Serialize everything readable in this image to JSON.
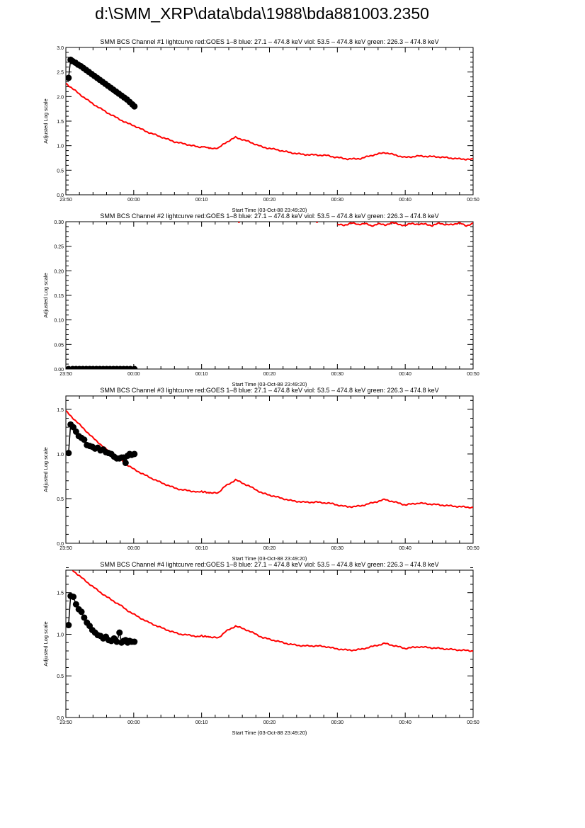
{
  "page_title": "d:\\SMM_XRP\\data\\bda\\1988\\bda881003.2350",
  "colors": {
    "goes": "#ff0000",
    "bcs": "#000000",
    "axes": "#000000"
  },
  "chart_data": [
    {
      "type": "line",
      "title": "SMM BCS Channel #1 lightcurve  red:GOES 1–8  blue: 27.1 – 474.8 keV  viol: 53.5 – 474.8 keV  green: 226.3 – 474.8 keV",
      "xlabel": "Start Time (03-Oct-88 23:49:20)",
      "ylabel": "Adjusted Log scale",
      "xlim": [
        "23:50",
        "00:50"
      ],
      "xticks": [
        "23:50",
        "00:00",
        "00:10",
        "00:20",
        "00:30",
        "00:40",
        "00:50"
      ],
      "ylim": [
        0,
        3.0
      ],
      "yticks": [
        "0.0",
        "0.5",
        "1.0",
        "1.5",
        "2.0",
        "2.5",
        "3.0"
      ],
      "ytick_values": [
        0,
        0.5,
        1.0,
        1.5,
        2.0,
        2.5,
        3.0
      ],
      "yminor": 0.1,
      "series": [
        {
          "name": "red:GOES 1–8",
          "style": "line",
          "color": "#ff0000",
          "minutes_after_2350": [
            0,
            2,
            4,
            6,
            8,
            9,
            10,
            12,
            14,
            15,
            16,
            17,
            18,
            19,
            19.5,
            20,
            20.7,
            21.5,
            22.5,
            23.5,
            25,
            27,
            29,
            31,
            33,
            35,
            37,
            38.5,
            39.5,
            40.5,
            41.5,
            42.5,
            43.5,
            45,
            47,
            50,
            52,
            55,
            58,
            60,
            61
          ],
          "values": [
            2.27,
            2.05,
            1.85,
            1.68,
            1.53,
            1.46,
            1.41,
            1.28,
            1.18,
            1.13,
            1.08,
            1.05,
            1.02,
            0.99,
            0.97,
            0.98,
            0.97,
            0.95,
            0.95,
            1.06,
            1.17,
            1.08,
            0.97,
            0.92,
            0.86,
            0.82,
            0.81,
            0.8,
            0.77,
            0.75,
            0.73,
            0.73,
            0.74,
            0.8,
            0.86,
            0.76,
            0.79,
            0.77,
            0.73,
            0.72,
            0.71
          ]
        },
        {
          "style": "points",
          "color": "#000000",
          "minutes_after_2350": [
            0.4,
            0.7,
            1,
            1.4,
            1.8,
            2.2,
            2.6,
            3,
            3.4,
            3.8,
            4.2,
            4.6,
            5,
            5.4,
            5.8,
            6.2,
            6.6,
            7,
            7.4,
            7.8,
            8.2,
            8.6,
            9,
            9.4,
            9.8,
            10.1
          ],
          "values": [
            2.38,
            2.75,
            2.72,
            2.69,
            2.65,
            2.62,
            2.58,
            2.54,
            2.5,
            2.46,
            2.42,
            2.38,
            2.34,
            2.3,
            2.26,
            2.22,
            2.18,
            2.14,
            2.1,
            2.06,
            2.02,
            1.98,
            1.94,
            1.89,
            1.84,
            1.8
          ]
        }
      ]
    },
    {
      "type": "line",
      "title": "SMM BCS Channel #2 lightcurve  red:GOES 1–8  blue: 27.1 – 474.8 keV  viol: 53.5 – 474.8 keV  green: 226.3 – 474.8 keV",
      "xlabel": "Start Time (03-Oct-88 23:49:20)",
      "ylabel": "Adjusted Log scale",
      "xlim": [
        "23:50",
        "00:50"
      ],
      "xticks": [
        "23:50",
        "00:00",
        "00:10",
        "00:20",
        "00:30",
        "00:40",
        "00:50"
      ],
      "ylim": [
        0,
        0.3
      ],
      "yticks": [
        "0.00",
        "0.05",
        "0.10",
        "0.15",
        "0.20",
        "0.25",
        "0.30"
      ],
      "ytick_values": [
        0,
        0.05,
        0.1,
        0.15,
        0.2,
        0.25,
        0.3
      ],
      "yminor": 0.01,
      "series": [
        {
          "name": "red:GOES 1–8",
          "style": "line",
          "color": "#ff0000",
          "minutes_after_2350": [
            40,
            41,
            42,
            43,
            44,
            45,
            46,
            47,
            48,
            49,
            50,
            51,
            52,
            53,
            54,
            55,
            56,
            57,
            58,
            59,
            60,
            61
          ],
          "values": [
            0.295,
            0.292,
            0.298,
            0.294,
            0.297,
            0.291,
            0.296,
            0.293,
            0.298,
            0.295,
            0.292,
            0.297,
            0.294,
            0.296,
            0.291,
            0.298,
            0.293,
            0.295,
            0.297,
            0.292,
            0.296,
            0.295
          ]
        },
        {
          "style": "points",
          "color": "#000000",
          "minutes_after_2350": [
            0.4,
            1,
            1.5,
            2,
            2.5,
            3,
            3.5,
            4,
            4.5,
            5,
            5.5,
            6,
            6.5,
            7,
            7.5,
            8,
            8.5,
            9,
            9.5,
            10.1
          ],
          "values": [
            0,
            0,
            0,
            0,
            0,
            0,
            0,
            0,
            0,
            0,
            0,
            0,
            0,
            0,
            0,
            0,
            0,
            0,
            0,
            0
          ]
        }
      ]
    },
    {
      "type": "line",
      "title": "SMM BCS Channel #3 lightcurve  red:GOES 1–8  blue: 27.1 – 474.8 keV  viol: 53.5 – 474.8 keV  green: 226.3 – 474.8 keV",
      "xlabel": "Start Time (03-Oct-88 23:49:20)",
      "ylabel": "Adjusted Log scale",
      "xlim": [
        "23:50",
        "00:50"
      ],
      "xticks": [
        "23:50",
        "00:00",
        "00:10",
        "00:20",
        "00:30",
        "00:40",
        "00:50"
      ],
      "ylim": [
        0,
        1.65
      ],
      "yticks": [
        "0.0",
        "0.5",
        "1.0",
        "1.5"
      ],
      "ytick_values": [
        0,
        0.5,
        1.0,
        1.5
      ],
      "yminor": 0.1,
      "series": [
        {
          "name": "red:GOES 1–8",
          "style": "line",
          "color": "#ff0000",
          "minutes_after_2350": [
            0,
            2,
            4,
            6,
            8,
            9,
            10,
            12,
            14,
            15,
            16,
            17,
            18,
            19,
            19.5,
            20,
            20.7,
            21.5,
            22.5,
            23.5,
            25,
            27,
            29,
            31,
            33,
            35,
            37,
            38.5,
            39.5,
            40.5,
            41.5,
            42.5,
            43.5,
            45,
            47,
            50,
            52,
            55,
            58,
            60,
            61
          ],
          "values": [
            1.48,
            1.33,
            1.18,
            1.05,
            0.94,
            0.88,
            0.83,
            0.75,
            0.68,
            0.65,
            0.62,
            0.6,
            0.59,
            0.58,
            0.57,
            0.58,
            0.57,
            0.56,
            0.57,
            0.64,
            0.71,
            0.64,
            0.56,
            0.52,
            0.48,
            0.46,
            0.46,
            0.45,
            0.44,
            0.42,
            0.41,
            0.41,
            0.42,
            0.45,
            0.49,
            0.43,
            0.45,
            0.43,
            0.41,
            0.4,
            0.4
          ]
        },
        {
          "style": "points",
          "color": "#000000",
          "minutes_after_2350": [
            0.4,
            0.7,
            1.1,
            1.5,
            1.9,
            2.3,
            2.7,
            3.1,
            3.5,
            3.9,
            4.3,
            4.7,
            5.1,
            5.5,
            5.9,
            6.3,
            6.7,
            7.1,
            7.5,
            7.9,
            8.2,
            8.5,
            8.8,
            9.1,
            9.4,
            9.7,
            10.1
          ],
          "values": [
            1.01,
            1.33,
            1.3,
            1.25,
            1.2,
            1.18,
            1.16,
            1.1,
            1.09,
            1.08,
            1.06,
            1.07,
            1.04,
            1.05,
            1.02,
            1.01,
            1.0,
            0.97,
            0.95,
            0.95,
            0.96,
            0.96,
            0.9,
            0.98,
            1.0,
            0.99,
            1.0
          ]
        }
      ]
    },
    {
      "type": "line",
      "title": "SMM BCS Channel #4 lightcurve  red:GOES 1–8  blue: 27.1 – 474.8 keV  viol: 53.5 – 474.8 keV  green: 226.3 – 474.8 keV",
      "xlabel": "Start Time (03-Oct-88 23:49:20)",
      "ylabel": "Adjusted Log scale",
      "xlim": [
        "23:50",
        "00:50"
      ],
      "xticks": [
        "23:50",
        "00:00",
        "00:10",
        "00:20",
        "00:30",
        "00:40",
        "00:50"
      ],
      "ylim": [
        0,
        1.77
      ],
      "yticks": [
        "0.0",
        "0.5",
        "1.0",
        "1.5"
      ],
      "ytick_values": [
        0,
        0.5,
        1.0,
        1.5
      ],
      "yminor": 0.1,
      "series": [
        {
          "name": "red:GOES 1–8",
          "style": "line",
          "color": "#ff0000",
          "minutes_after_2350": [
            1,
            2,
            4,
            6,
            8,
            9,
            10,
            12,
            14,
            15,
            16,
            17,
            18,
            19,
            19.5,
            20,
            20.7,
            21.5,
            22.5,
            23.5,
            25,
            27,
            29,
            31,
            33,
            35,
            37,
            38.5,
            39.5,
            40.5,
            41.5,
            42.5,
            43.5,
            45,
            47,
            50,
            52,
            55,
            58,
            60,
            61
          ],
          "values": [
            1.77,
            1.7,
            1.57,
            1.45,
            1.35,
            1.29,
            1.24,
            1.15,
            1.08,
            1.05,
            1.02,
            1.0,
            0.99,
            0.98,
            0.97,
            0.98,
            0.97,
            0.96,
            0.96,
            1.03,
            1.1,
            1.04,
            0.96,
            0.92,
            0.88,
            0.86,
            0.86,
            0.85,
            0.83,
            0.82,
            0.81,
            0.81,
            0.82,
            0.85,
            0.89,
            0.83,
            0.85,
            0.83,
            0.81,
            0.8,
            0.8
          ]
        },
        {
          "style": "points",
          "color": "#000000",
          "minutes_after_2350": [
            0.4,
            0.7,
            1.1,
            1.5,
            1.9,
            2.3,
            2.7,
            3.1,
            3.5,
            3.9,
            4.3,
            4.7,
            5.1,
            5.5,
            5.9,
            6.3,
            6.7,
            7.1,
            7.5,
            7.9,
            8.2,
            8.5,
            8.8,
            9.1,
            9.4,
            9.7,
            10.1
          ],
          "values": [
            1.11,
            1.46,
            1.45,
            1.36,
            1.3,
            1.27,
            1.2,
            1.14,
            1.1,
            1.05,
            1.02,
            0.99,
            0.98,
            0.95,
            0.97,
            0.93,
            0.92,
            0.95,
            0.91,
            1.02,
            0.9,
            0.92,
            0.93,
            0.9,
            0.92,
            0.91,
            0.91
          ]
        }
      ]
    }
  ]
}
